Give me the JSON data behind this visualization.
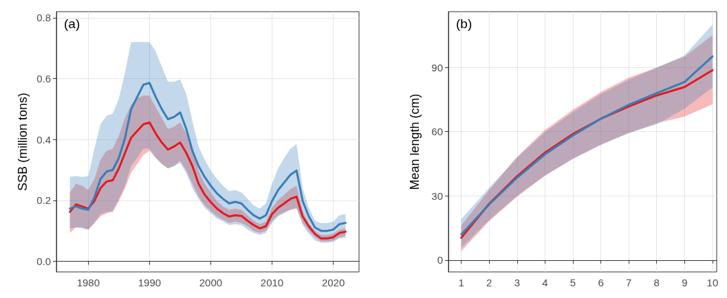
{
  "chart_data": [
    {
      "type": "line",
      "title": "(a)",
      "ylabel": "SSB (million tons)",
      "xlim": [
        1974.8,
        2024.2
      ],
      "ylim": [
        -0.035,
        0.82
      ],
      "xticks": [
        1980,
        1990,
        2000,
        2010,
        2020
      ],
      "yticks": [
        {
          "value": 0,
          "label": "0.0"
        },
        0.2,
        0.4,
        0.6,
        0.8
      ],
      "grid": true,
      "line_style": "solid",
      "marker": "none",
      "x": [
        1977,
        1978,
        1979,
        1980,
        1981,
        1982,
        1983,
        1984,
        1985,
        1986,
        1987,
        1988,
        1989,
        1990,
        1991,
        1992,
        1993,
        1994,
        1995,
        1996,
        1997,
        1998,
        1999,
        2000,
        2001,
        2002,
        2003,
        2004,
        2005,
        2006,
        2007,
        2008,
        2009,
        2010,
        2011,
        2012,
        2013,
        2014,
        2015,
        2016,
        2017,
        2018,
        2019,
        2020,
        2021,
        2022
      ],
      "series": [
        {
          "color": "#e41a1c",
          "values": [
            0.162,
            0.187,
            0.18,
            0.173,
            0.198,
            0.24,
            0.262,
            0.266,
            0.305,
            0.356,
            0.406,
            0.428,
            0.45,
            0.456,
            0.42,
            0.39,
            0.367,
            0.377,
            0.39,
            0.356,
            0.313,
            0.255,
            0.219,
            0.194,
            0.173,
            0.158,
            0.147,
            0.151,
            0.149,
            0.133,
            0.119,
            0.108,
            0.115,
            0.155,
            0.176,
            0.19,
            0.205,
            0.212,
            0.147,
            0.115,
            0.09,
            0.075,
            0.075,
            0.079,
            0.093,
            0.097
          ],
          "upper": [
            0.226,
            0.255,
            0.248,
            0.234,
            0.27,
            0.334,
            0.363,
            0.37,
            0.413,
            0.471,
            0.514,
            0.536,
            0.544,
            0.544,
            0.507,
            0.471,
            0.435,
            0.442,
            0.456,
            0.42,
            0.363,
            0.298,
            0.255,
            0.226,
            0.198,
            0.18,
            0.169,
            0.173,
            0.169,
            0.151,
            0.133,
            0.122,
            0.13,
            0.176,
            0.201,
            0.219,
            0.237,
            0.248,
            0.165,
            0.126,
            0.1,
            0.086,
            0.086,
            0.09,
            0.104,
            0.108
          ],
          "lower": [
            0.093,
            0.111,
            0.111,
            0.104,
            0.126,
            0.147,
            0.158,
            0.162,
            0.198,
            0.24,
            0.291,
            0.32,
            0.349,
            0.363,
            0.34,
            0.32,
            0.305,
            0.313,
            0.33,
            0.298,
            0.255,
            0.212,
            0.183,
            0.165,
            0.147,
            0.137,
            0.126,
            0.13,
            0.126,
            0.115,
            0.1,
            0.093,
            0.1,
            0.133,
            0.151,
            0.162,
            0.169,
            0.173,
            0.126,
            0.1,
            0.079,
            0.065,
            0.065,
            0.068,
            0.079,
            0.083
          ]
        },
        {
          "color": "#377eb8",
          "values": [
            0.173,
            0.18,
            0.173,
            0.169,
            0.21,
            0.27,
            0.295,
            0.3,
            0.34,
            0.405,
            0.5,
            0.54,
            0.58,
            0.586,
            0.54,
            0.5,
            0.467,
            0.474,
            0.489,
            0.435,
            0.363,
            0.313,
            0.277,
            0.248,
            0.223,
            0.205,
            0.19,
            0.195,
            0.19,
            0.169,
            0.151,
            0.14,
            0.151,
            0.198,
            0.234,
            0.259,
            0.284,
            0.298,
            0.198,
            0.147,
            0.111,
            0.1,
            0.1,
            0.104,
            0.122,
            0.126
          ],
          "upper": [
            0.277,
            0.28,
            0.277,
            0.28,
            0.37,
            0.45,
            0.478,
            0.485,
            0.535,
            0.62,
            0.72,
            0.72,
            0.72,
            0.72,
            0.69,
            0.64,
            0.59,
            0.59,
            0.597,
            0.55,
            0.46,
            0.377,
            0.334,
            0.298,
            0.27,
            0.248,
            0.23,
            0.234,
            0.226,
            0.205,
            0.183,
            0.173,
            0.19,
            0.255,
            0.305,
            0.34,
            0.37,
            0.385,
            0.24,
            0.176,
            0.133,
            0.126,
            0.126,
            0.13,
            0.151,
            0.155
          ],
          "lower": [
            0.108,
            0.111,
            0.108,
            0.104,
            0.126,
            0.155,
            0.162,
            0.165,
            0.205,
            0.248,
            0.313,
            0.34,
            0.37,
            0.37,
            0.34,
            0.32,
            0.305,
            0.313,
            0.323,
            0.29,
            0.24,
            0.205,
            0.176,
            0.158,
            0.14,
            0.13,
            0.119,
            0.122,
            0.119,
            0.104,
            0.093,
            0.086,
            0.093,
            0.126,
            0.147,
            0.158,
            0.169,
            0.176,
            0.119,
            0.09,
            0.068,
            0.061,
            0.061,
            0.063,
            0.075,
            0.077
          ]
        }
      ]
    },
    {
      "type": "line",
      "title": "(b)",
      "ylabel": "Mean length (cm)",
      "xlim": [
        0.54,
        10.15
      ],
      "ylim": [
        -5.5,
        116
      ],
      "xticks": [
        1,
        2,
        3,
        4,
        5,
        6,
        7,
        8,
        9,
        10
      ],
      "yticks": [
        0,
        30,
        60,
        90
      ],
      "grid": true,
      "line_style": "solid",
      "marker": "none",
      "x": [
        1,
        2,
        3,
        4,
        5,
        6,
        7,
        8,
        9,
        10
      ],
      "series": [
        {
          "color": "#e41a1c",
          "values": [
            10.4,
            26.3,
            39.2,
            50.2,
            58.9,
            66,
            71.7,
            76.9,
            80.8,
            88.7
          ],
          "upper": [
            16.1,
            32.7,
            48.3,
            60.8,
            70.2,
            78.5,
            85.2,
            89.9,
            95.1,
            105
          ],
          "lower": [
            4.2,
            18.2,
            29.6,
            39.5,
            47.3,
            54,
            59.3,
            63.9,
            67,
            72.8
          ]
        },
        {
          "color": "#377eb8",
          "values": [
            12,
            26,
            38.5,
            49.4,
            58.2,
            66,
            72.5,
            78,
            83.2,
            95.1
          ],
          "upper": [
            19.2,
            33.8,
            47.8,
            59.8,
            69.1,
            77.5,
            84.2,
            89.9,
            95.6,
            110
          ],
          "lower": [
            5.7,
            18.7,
            30.1,
            39.5,
            47.3,
            53.7,
            59.3,
            63.4,
            70.7,
            80.6
          ]
        }
      ]
    }
  ]
}
